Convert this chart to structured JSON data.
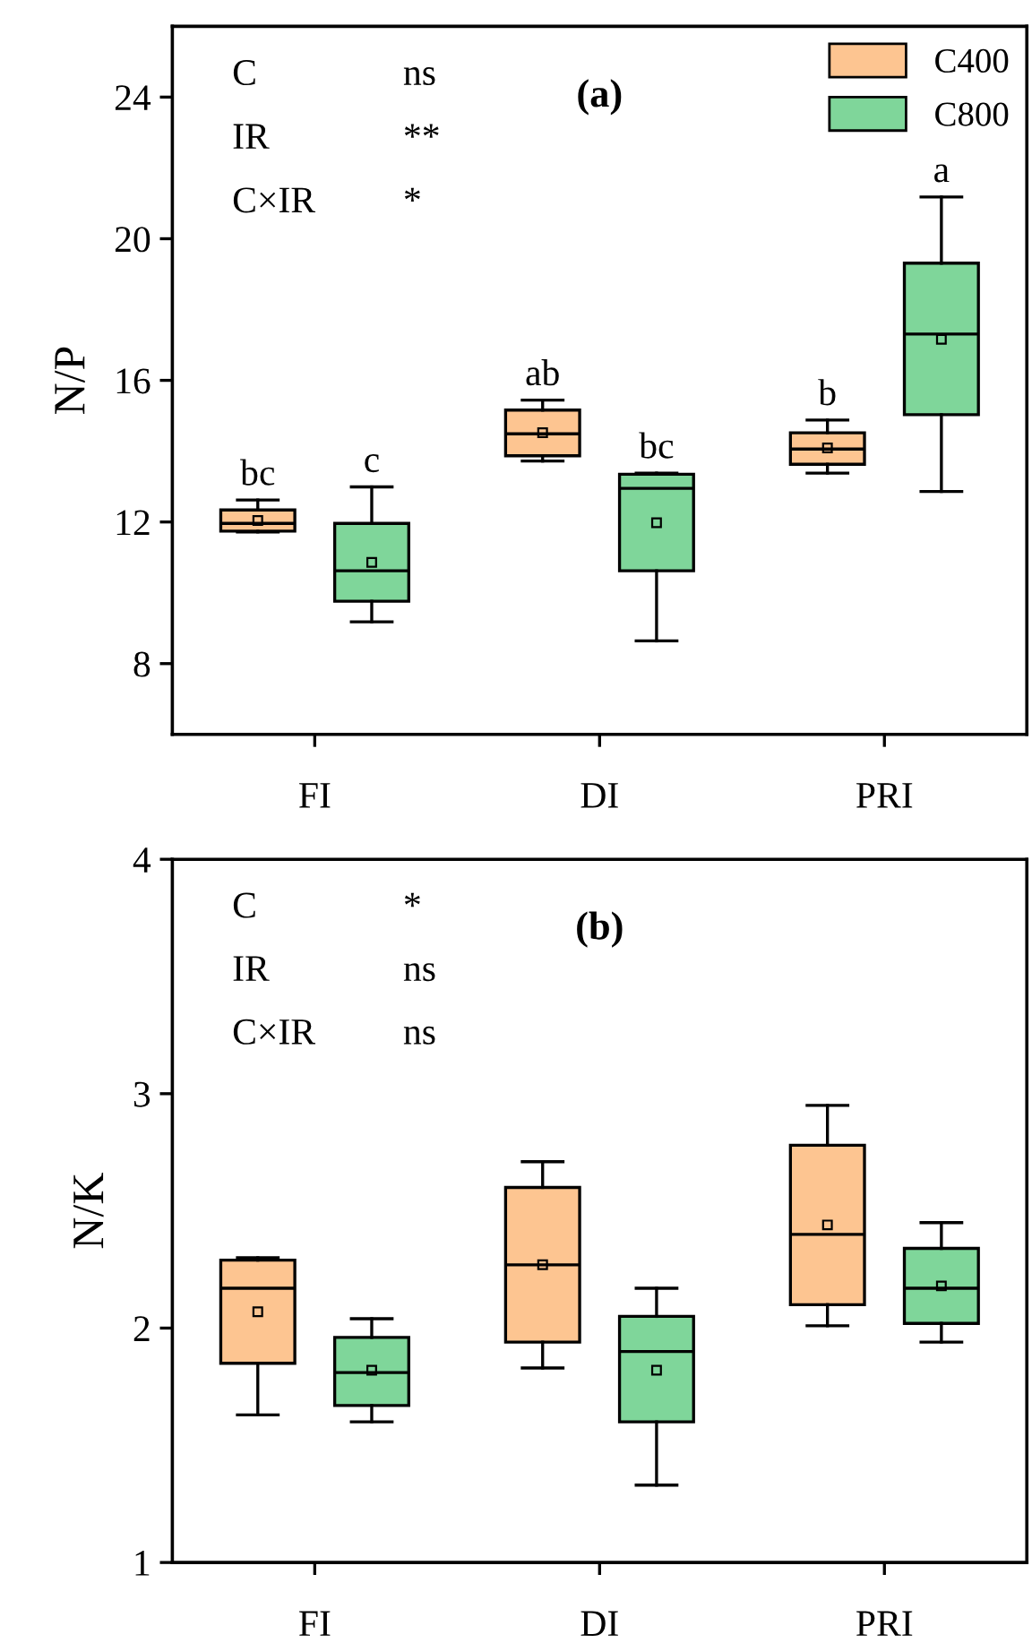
{
  "chart_data": [
    {
      "type": "box",
      "ylabel": "N/P",
      "categories": [
        "FI",
        "DI",
        "PRI"
      ],
      "ylim": [
        6,
        26
      ],
      "yticks": [
        8,
        12,
        16,
        20,
        24
      ],
      "legend": "top right",
      "grid": false,
      "annotations": [
        "C",
        "ns",
        "IR",
        "**",
        "C×IR",
        "*",
        "(a)",
        "bc",
        "c",
        "ab",
        "bc",
        "b",
        "a"
      ],
      "series": [
        {
          "name": "C400",
          "color": "#fdc591",
          "boxes": [
            {
              "low": 11.72,
              "q1": 11.74,
              "median": 11.96,
              "q3": 12.34,
              "high": 12.62,
              "mean": 12.04
            },
            {
              "low": 13.72,
              "q1": 13.87,
              "median": 14.49,
              "q3": 15.16,
              "high": 15.44,
              "mean": 14.52
            },
            {
              "low": 13.38,
              "q1": 13.63,
              "median": 14.06,
              "q3": 14.52,
              "high": 14.88,
              "mean": 14.09
            }
          ]
        },
        {
          "name": "C800",
          "color": "#7fd69a",
          "boxes": [
            {
              "low": 9.18,
              "q1": 9.76,
              "median": 10.62,
              "q3": 11.96,
              "high": 12.99,
              "mean": 10.86
            },
            {
              "low": 8.64,
              "q1": 10.62,
              "median": 12.95,
              "q3": 13.35,
              "high": 13.38,
              "mean": 11.98
            },
            {
              "low": 12.86,
              "q1": 15.03,
              "median": 17.31,
              "q3": 19.31,
              "high": 21.18,
              "mean": 17.16
            }
          ]
        }
      ]
    },
    {
      "type": "box",
      "ylabel": "N/K",
      "categories": [
        "FI",
        "DI",
        "PRI"
      ],
      "ylim": [
        1,
        4
      ],
      "yticks": [
        1,
        2,
        3,
        4
      ],
      "grid": false,
      "annotations": [
        "C",
        "*",
        "IR",
        "ns",
        "C×IR",
        "ns",
        "(b)"
      ],
      "series": [
        {
          "color": "#fdc591",
          "boxes": [
            {
              "low": 1.63,
              "q1": 1.85,
              "median": 2.17,
              "q3": 2.29,
              "high": 2.3,
              "mean": 2.07
            },
            {
              "low": 1.83,
              "q1": 1.94,
              "median": 2.27,
              "q3": 2.6,
              "high": 2.71,
              "mean": 2.27
            },
            {
              "low": 2.01,
              "q1": 2.1,
              "median": 2.4,
              "q3": 2.78,
              "high": 2.95,
              "mean": 2.44
            }
          ]
        },
        {
          "color": "#7fd69a",
          "boxes": [
            {
              "low": 1.6,
              "q1": 1.67,
              "median": 1.81,
              "q3": 1.96,
              "high": 2.04,
              "mean": 1.82
            },
            {
              "low": 1.33,
              "q1": 1.6,
              "median": 1.9,
              "q3": 2.05,
              "high": 2.17,
              "mean": 1.82
            },
            {
              "low": 1.94,
              "q1": 2.02,
              "median": 2.17,
              "q3": 2.34,
              "high": 2.45,
              "mean": 2.18
            }
          ]
        }
      ]
    }
  ]
}
